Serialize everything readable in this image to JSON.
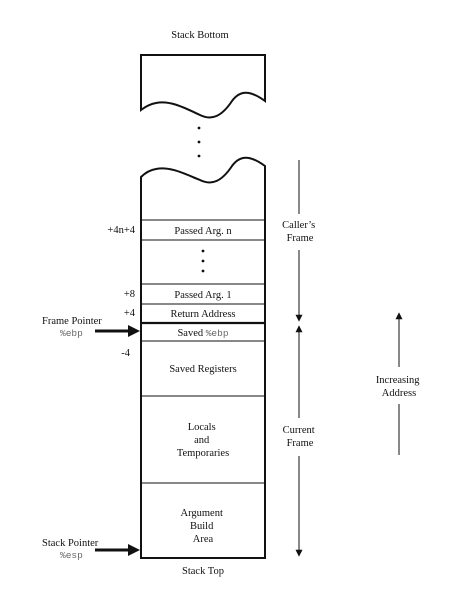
{
  "title_top": "Stack Bottom",
  "title_bottom": "Stack Top",
  "frame_pointer": {
    "label": "Frame Pointer",
    "register": "%ebp"
  },
  "stack_pointer": {
    "label": "Stack Pointer",
    "register": "%esp"
  },
  "offsets": {
    "arg_n": "+4n+4",
    "arg_1": "+8",
    "return_address": "+4",
    "saved_registers": "-4"
  },
  "cells": {
    "passed_arg_n": "Passed Arg. n",
    "passed_arg_1": "Passed Arg. 1",
    "return_address": "Return Address",
    "saved_ebp_prefix": "Saved ",
    "saved_ebp_register": "%ebp",
    "saved_registers": "Saved Registers",
    "locals": [
      "Locals",
      "and",
      "Temporaries"
    ],
    "argument_build": [
      "Argument",
      "Build",
      "Area"
    ]
  },
  "side_labels": {
    "callers_frame": [
      "Caller’s",
      "Frame"
    ],
    "current_frame": [
      "Current",
      "Frame"
    ],
    "increasing_address": [
      "Increasing",
      "Address"
    ]
  }
}
